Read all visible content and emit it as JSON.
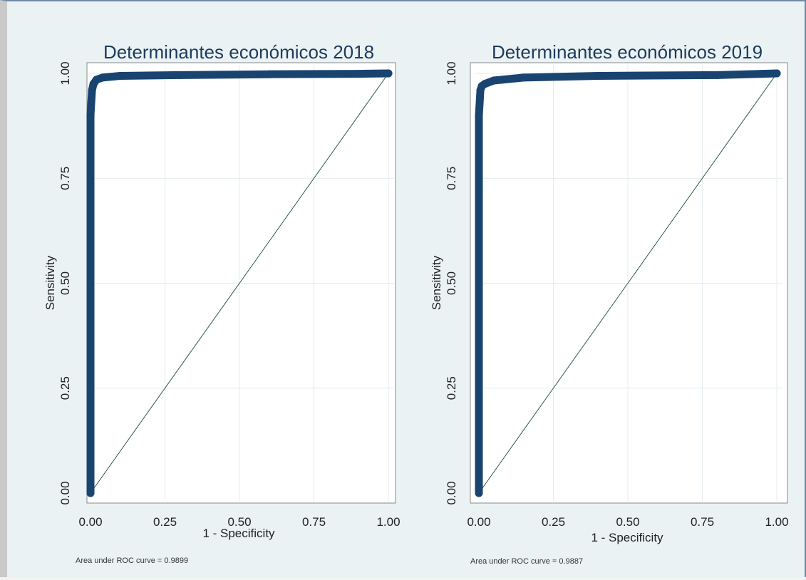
{
  "colors": {
    "background": "#eaf2f3",
    "plot_background": "#ffffff",
    "curve": "#1a4470",
    "reference_line": "#2e5a3e",
    "grid": "#e4ebee",
    "title": "#1e3a5b"
  },
  "chart_data": [
    {
      "type": "line",
      "title": "Determinantes económicos 2018",
      "xlabel": "1 - Specificity",
      "ylabel": "Sensitivity",
      "xlim": [
        0,
        1
      ],
      "ylim": [
        0,
        1
      ],
      "xticks": [
        "0.00",
        "0.25",
        "0.50",
        "0.75",
        "1.00"
      ],
      "yticks": [
        "0.00",
        "0.25",
        "0.50",
        "0.75",
        "1.00"
      ],
      "grid": true,
      "series": [
        {
          "x": [
            0.0,
            0.0,
            0.0,
            0.005,
            0.01,
            0.02,
            0.04,
            0.1,
            0.3,
            0.6,
            0.9,
            1.0
          ],
          "y": [
            0.0,
            0.5,
            0.9,
            0.96,
            0.975,
            0.985,
            0.99,
            0.994,
            0.996,
            0.998,
            0.999,
            1.0
          ]
        }
      ],
      "reference_line": {
        "x": [
          0,
          1
        ],
        "y": [
          0,
          1
        ]
      },
      "note": "Area under ROC curve = 0.9899"
    },
    {
      "type": "line",
      "title": "Determinantes económicos 2019",
      "xlabel": "1 - Specificity",
      "ylabel": "Sensitivity",
      "xlim": [
        0,
        1
      ],
      "ylim": [
        0,
        1
      ],
      "xticks": [
        "0.00",
        "0.25",
        "0.50",
        "0.75",
        "1.00"
      ],
      "yticks": [
        "0.00",
        "0.25",
        "0.50",
        "0.75",
        "1.00"
      ],
      "grid": true,
      "series": [
        {
          "x": [
            0.0,
            0.0,
            0.0,
            0.005,
            0.01,
            0.02,
            0.05,
            0.15,
            0.4,
            0.8,
            0.95,
            1.0
          ],
          "y": [
            0.0,
            0.5,
            0.9,
            0.96,
            0.97,
            0.975,
            0.983,
            0.99,
            0.994,
            0.996,
            0.999,
            1.0
          ]
        }
      ],
      "reference_line": {
        "x": [
          0,
          1
        ],
        "y": [
          0,
          1
        ]
      },
      "note": "Area under ROC curve = 0.9887"
    }
  ]
}
